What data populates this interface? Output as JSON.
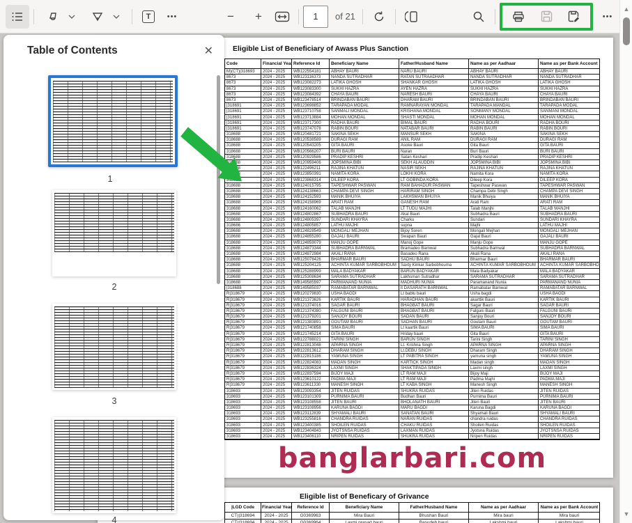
{
  "toolbar": {
    "page_current": "1",
    "page_count": "of 21",
    "zoom_out_label": "−",
    "zoom_in_label": "+",
    "text_tool_label": "T",
    "annotation_more_label": "•••",
    "more_options_label": "•••",
    "icons": [
      "toc-toggle",
      "highlight-tool",
      "draw-tool",
      "text-tool",
      "zoom-out",
      "zoom-in",
      "fit-width",
      "rotate",
      "page-view",
      "search",
      "print",
      "save",
      "save-as"
    ]
  },
  "sidebar": {
    "title": "Table of Contents",
    "close_label": "✕",
    "thumbnails": [
      {
        "label": "1",
        "selected": true
      },
      {
        "label": "2",
        "selected": false
      },
      {
        "label": "3",
        "selected": false
      },
      {
        "label": "4",
        "selected": false
      }
    ]
  },
  "scrollbar": {
    "up_label": "▲",
    "down_label": "▼"
  },
  "annotations": {
    "green": "#22b440",
    "note": "green box around print/save buttons and green arrow from page-1 thumbnail to document"
  },
  "colors": {
    "selection_blue": "#2777d9",
    "watermark_pink": "#b02b52",
    "annotation_green": "#22b440"
  },
  "document": {
    "watermark": "banglarbari.com",
    "page1": {
      "title": "Eligible List of Beneficiary of Awass Plus Sanction",
      "columns": [
        "Code",
        "Financial Year",
        "Reference Id",
        "Beneficiary Name",
        "Father/Husband Name",
        "Name as per Aadhaar",
        "Name as per Bank Account"
      ],
      "rows": [
        [
          "M)(CT)|318693",
          "2024 - 2025",
          "WB122554181",
          "ABHAY BAURI",
          "NARU BAURI",
          "ABHAY BAURI",
          "ABHAY BAURI"
        ],
        [
          "8673",
          "2024 - 2025",
          "WB123116373",
          "NANDA SUTRADHAR",
          "RATAN SUTRAADHAR",
          "NANDA SUTRADHAR",
          "NANDA SUTRADHAR"
        ],
        [
          "8673",
          "2024 - 2025",
          "WB123082273",
          "LATIKA GHOSH",
          "SHANKAR GHOSH",
          "LATIKA GHOSH",
          "LATIKA GHOSH"
        ],
        [
          "8673",
          "2024 - 2025",
          "WB123083300",
          "SUKHI HAZRA",
          "AYEN HAZRA",
          "SUKHI HAZRA",
          "SUKHI HAZRA"
        ],
        [
          "8673",
          "2024 - 2025",
          "WB123084392",
          "CHAYA BAURI",
          "NARESH BAURI",
          "CHAYA BAURI",
          "CHAYA BAURI"
        ],
        [
          "8673",
          "2024 - 2025",
          "WB123478514",
          "BRINDABAN BAURI",
          "DHARAM BAURI",
          "BRINDABAN BAURI",
          "BRINDABAN BAURI"
        ],
        [
          "|318691",
          "2024 - 2025",
          "WB123698852",
          "TARAPADA MODAL",
          "RAMNARAYAN MONDAL",
          "TARAPADA MANDAL",
          "TARAPADA MODAL"
        ],
        [
          "|318691",
          "2024 - 2025",
          "WB123710758",
          "SANMALI MONDAL",
          "KRISHANA MONDAL",
          "SONMANY MONDAL",
          "SANMANI MONDAL"
        ],
        [
          "|318691",
          "2024 - 2025",
          "WB123713884",
          "MOHAN MONDAL",
          "SHASTI MONDAL",
          "MOHAN MONDAL",
          "MOHAN MONDAL"
        ],
        [
          "|318691",
          "2024 - 2025",
          "WB123717300",
          "RADHA BAURI",
          "BIMAL BAURI",
          "RADHA BOURI",
          "RADHA BOURI"
        ],
        [
          "|318691",
          "2024 - 2025",
          "WB123747078",
          "RABIN BOURI",
          "NATABAR BAURI",
          "RABIN BAURI",
          "RABIN BOURI"
        ],
        [
          "318688",
          "2024 - 2025",
          "WB120481721",
          "SAKINA SEKH",
          "MANSUR SEKH",
          "SAKINA",
          "SAKINA SEKH"
        ],
        [
          "318688",
          "2024 - 2025",
          "WB120538589",
          "DURAGI RAM",
          "ANIL RAM",
          "DURAGI RAM",
          "DURAGI RAM"
        ],
        [
          "318688",
          "2024 - 2025",
          "WB120543205",
          "GITA BAURI",
          "Asoke Bauri",
          "Gita Bauri",
          "GITA BAURI"
        ],
        [
          "318688",
          "2024 - 2025",
          "WB120566207",
          "BURI BAURI",
          "Naran",
          "Buri Bauri",
          "BURI BAURI"
        ],
        [
          "318688",
          "2024 - 2025",
          "WB120929586",
          "PRADIP KESHRI",
          "Satan Keshari",
          "Pradip Keshari",
          "PRADIP KESHRI"
        ],
        [
          "318688",
          "2024 - 2025",
          "WB120959406",
          "JOPSMINA BIBI",
          "SEKH ALAUDDIN",
          "JOPSMINA BIBI",
          "JOPSMINA BIBI"
        ],
        [
          "318688",
          "2024 - 2025",
          "WB122496211",
          "RAJINA KHATUN",
          "NASIR SEKH",
          "RAJINA KHATUN",
          "RAJINA KHATUN"
        ],
        [
          "318688",
          "2024 - 2025",
          "WB123850391",
          "NAMITA KORA",
          "LOKHI KORA",
          "Namita Kora",
          "NAMITA KORA"
        ],
        [
          "318688",
          "2024 - 2025",
          "WB123868314",
          "DILEEP KORA",
          "LT GOBINDA KORA",
          "Dileep Kora",
          "DILEEP KORA"
        ],
        [
          "318688",
          "2024 - 2025",
          "WB124015795",
          "TAPESHWAR PASWAN",
          "RAM BAHADUR PASWAN",
          "Tapeshwar Paswan",
          "TAPESHWAR PASWAN"
        ],
        [
          "318688",
          "2024 - 2025",
          "WB124138663",
          "CHAMPA DEVI SINGH",
          "HARIRAM SINGH",
          "Champa Debi Singh",
          "CHAMPA DEVI SINGH"
        ],
        [
          "318688",
          "2024 - 2025",
          "WB124152593",
          "MANIK BHUIYA",
          "LAKHSMAN BHUIYA",
          "Manik Bhuiya",
          "MANIK BHUIYA"
        ],
        [
          "318688",
          "2024 - 2025",
          "WB124158969",
          "ARATI RAM",
          "GANESH RAM",
          "Arati Ram",
          "ARATI RAM"
        ],
        [
          "318688",
          "2024 - 2025",
          "WB124160062",
          "TALAB MANJHI",
          "LT TUDU MAJHI",
          "Talab Manjhi",
          "TALAB MANJHI"
        ],
        [
          "318688",
          "2024 - 2025",
          "WB124802867",
          "SUBHADRA BAURI",
          "Akal Bauri",
          "Subhadra Bauri",
          "SUBHADRA BAURI"
        ],
        [
          "318688",
          "2024 - 2025",
          "WB124805397",
          "SUNDARI KHAYRA",
          "Charku",
          "Sundari",
          "SUNDARI KHAYRA"
        ],
        [
          "318686",
          "2024 - 2025",
          "WB124805857",
          "LATHU MAJHI",
          "supna",
          "Majhi",
          "LATHU MAJHI"
        ],
        [
          "318688",
          "2024 - 2025",
          "WB124828549",
          "MONGALI MEJHAN",
          "Bijoy Soren",
          "Mongali Mejhan",
          "MONGALI MEJHAN"
        ],
        [
          "318688",
          "2024 - 2025",
          "WB124855280",
          "GAJALI BAURI",
          "Swapan Bauri",
          "Gajal Bauri",
          "GAJALI BAURI"
        ],
        [
          "318688",
          "2024 - 2025",
          "WB124859079",
          "MANJU GOPE",
          "Manoj Gope",
          "Manju Gope",
          "MANJU GOPE"
        ],
        [
          "318688",
          "2024 - 2025",
          "WB124873344",
          "SUBHADRA BARNWAL",
          "Bramadeo Barnwal",
          "Subhadra Barnwal",
          "SUBHADRA BARNWAL"
        ],
        [
          "318688",
          "2024 - 2025",
          "WB124872984",
          "AKALI RANA",
          "Basadeo Rana",
          "Akali Rana",
          "AKALI RANA"
        ],
        [
          "318688",
          "2024 - 2025",
          "WB125078426",
          "BHARMAR BAURI",
          "SADHU BAURI",
          "Bharmar Bauri",
          "BHARMAR BAURI"
        ],
        [
          "318688",
          "2024 - 2025",
          "WB125204125",
          "ACHINTA KUMAR SARBOBHOUM",
          "Saxty Kinkar Sarbobhouma",
          "ACHINTA KUMAR SARBOBHOUM",
          "ACHINTA KUMAR SARBOBHOUM"
        ],
        [
          "318688",
          "2024 - 2025",
          "WB125288999",
          "MALA BADYAKAR",
          "BARUN BADYAKAR",
          "Mala Badyakar",
          "MALA BADYAKAR"
        ],
        [
          "318688",
          "2024 - 2025",
          "WB125308634",
          "SARAMA SUTRADHAR",
          "Lakhsman Sutradhar",
          "SARAMA SUTRADHAR",
          "SARAMA SUTRADHAR"
        ],
        [
          "318688",
          "2024 - 2025",
          "WB149585597",
          "PARMANAND NUNIA",
          "MADHURI NUNIA",
          "Paramanand Nunia",
          "PARMANAND NUNIA"
        ],
        [
          "|318688",
          "2024 - 2025",
          "WB149585037",
          "RAMABATAR BARNWAL",
          "lt DASARATH BARNWAL",
          "Ramabatar Barnwal",
          "RAMABATAR BARNWAL"
        ],
        [
          "R|318679",
          "2024 - 2025",
          "WB120279830",
          "USHA BAGDI",
          "Lt bablu bauri",
          "Usha bagdi",
          "USHA BAGDI"
        ],
        [
          "R|318679",
          "2024 - 2025",
          "WB121373626",
          "KARTIK BAURI",
          "HARADHAN BAURI",
          "akarttik Bauri",
          "KARTIK BAURI"
        ],
        [
          "R|318679",
          "2024 - 2025",
          "WB121374016",
          "SAGAR BAURI",
          "BHAGBAT BAURI",
          "Sagar Bauri",
          "SAGAR BAURI"
        ],
        [
          "R|318679",
          "2024 - 2025",
          "WB121374380",
          "FALGUNI BAURI",
          "BHAGBAT BAURI",
          "Falguni Bauri",
          "FALGUNI BAURI"
        ],
        [
          "R|318679",
          "2024 - 2025",
          "WB121379201",
          "SANJOY BOURI",
          "SADAN BAURI",
          "Sanjoy Bouri",
          "SANJOY BOURI"
        ],
        [
          "R|318679",
          "2024 - 2025",
          "WB121383891",
          "GOUTAM BAURI",
          "SADHAN BAURI",
          "Goutam Bauri",
          "GOUTAM BAURI"
        ],
        [
          "R|318679",
          "2024 - 2025",
          "WB121740858",
          "SIMA BAURI",
          "Lt kaartik Bauri",
          "SIMA BAURI",
          "SIMA BAURI"
        ],
        [
          "R|318679",
          "2024 - 2025",
          "WB121745214",
          "GITA BAURI",
          "Hriday bauri",
          "Gita Bauri",
          "GITA BAURI"
        ],
        [
          "R|318679",
          "2024 - 2025",
          "WB122788021",
          "TARINI SINGH",
          "BARUN SINGH",
          "Tarini Singh",
          "TARINI SINGH"
        ],
        [
          "R|318679",
          "2024 - 2025",
          "WB122813048",
          "APARNA SINGH",
          "Lt. Krishna Singh",
          "APARNA SINGH",
          "APARNA SINGH"
        ],
        [
          "R|318679",
          "2024 - 2025",
          "WB122813612",
          "DHARAM SINGH",
          "Lt.DEBU SINGH",
          "Dharam Singh",
          "DHARAM SINGH"
        ],
        [
          "R|318679",
          "2024 - 2025",
          "WB122815186",
          "YAMUNA SINGH",
          "LT PABITRA SINGH",
          "yamuna singh",
          "YAMUNA SINGH"
        ],
        [
          "R|318679",
          "2024 - 2025",
          "WB122824083",
          "MADAN SINGH",
          "KARTICK SINGH",
          "Madan singh",
          "MADAN SINGH"
        ],
        [
          "R|318679",
          "2024 - 2025",
          "WB122836324",
          "LAXMI SINGH",
          "SHAKTIPADA SINGH",
          "Laxmi singh",
          "LAXMI SINGH"
        ],
        [
          "R|318679",
          "2024 - 2025",
          "WB122837594",
          "BIJOY MAJI",
          "LT RAM MAJI",
          "Bijoy Maji",
          "BIJOY MAJI"
        ],
        [
          "R|318679",
          "2024 - 2025",
          "WB123610122",
          "PADMA MAJI",
          "LT RAM MAJI",
          "Padma Majhi",
          "PADMA MAJI"
        ],
        [
          "R|318679",
          "2024 - 2025",
          "WB123611330",
          "MANESH SINGH",
          "LT KABA SINGH",
          "Manesh Singh",
          "MANESH SINGH"
        ],
        [
          "318693",
          "2024 - 2025",
          "WB123093354",
          "JITEN RUIDAS",
          "SHUKRA RUIDAS",
          "Jiten Ruidas",
          "JITEN RUIDAS"
        ],
        [
          "318693",
          "2024 - 2025",
          "WB123101309",
          "PURNIMA BAURI",
          "Budhan Bauri",
          "Purnima Bauri",
          "PURNIMA BAURI"
        ],
        [
          "318693",
          "2024 - 2025",
          "WB123108558",
          "JITEN BAURI",
          "BHOLANATH BAURI",
          "Jiten Bauri",
          "JITEN BAURI"
        ],
        [
          "318693",
          "2024 - 2025",
          "WB123108956",
          "KARUNA BAGDI",
          "MARU BAGDI",
          "Karuna Bagdi",
          "KARUNA BAGDI"
        ],
        [
          "318693",
          "2024 - 2025",
          "WB123112839",
          "SHYAMALI BAURI",
          "SANATAN BAURI",
          "Shyamali Bauri",
          "SHYAMALI BAURI"
        ],
        [
          "318693",
          "2024 - 2025",
          "WB123255816",
          "CHANDRA RUIDAS",
          "NARAN RUIDAS",
          "chandra ruidas",
          "CHANDRA RUIDAS"
        ],
        [
          "318693",
          "2024 - 2025",
          "WB123400385",
          "SHOILEN RUIDAS",
          "CHAKU RUIDAS",
          "Shoilen Ruidas",
          "SHOILEN RUIDAS"
        ],
        [
          "318693",
          "2024 - 2025",
          "WB123404843",
          "JYOTSNSA RUIDAS",
          "LAXMAN RUIDAS",
          "Jyotsna Ruidas",
          "JYOTSNSA RUIDAS"
        ],
        [
          "318693",
          "2024 - 2025",
          "WB123406110",
          "NRIPEN RUIDAS",
          "SHUKRA RUIDAS",
          "Nripen Ruidas",
          "NRIPEN RUIDAS"
        ]
      ]
    },
    "page2": {
      "title": "Eligible list of Beneficary of Grivance",
      "columns": [
        "|LGD Code",
        "Financial Year",
        "Reference Id",
        "Beneficiary Name",
        "Father/Husband Name",
        "Name as per Aadhaar",
        "Name as per Bank Account"
      ],
      "rows": [
        [
          "CT)|318694",
          "2024 - 2025",
          "G0369963",
          "Mira Bauri",
          "Bhushan Bauri",
          "Mira bauri",
          "Mira bauri"
        ],
        [
          "CT)|318694",
          "2024 - 2025",
          "G0369964",
          "Laxmi prasad bauri",
          "Basudeb bauri",
          "Lakshmi bauri",
          "Lakshmi bauri"
        ],
        [
          "",
          "",
          "",
          "",
          "",
          "",
          ""
        ]
      ]
    }
  }
}
